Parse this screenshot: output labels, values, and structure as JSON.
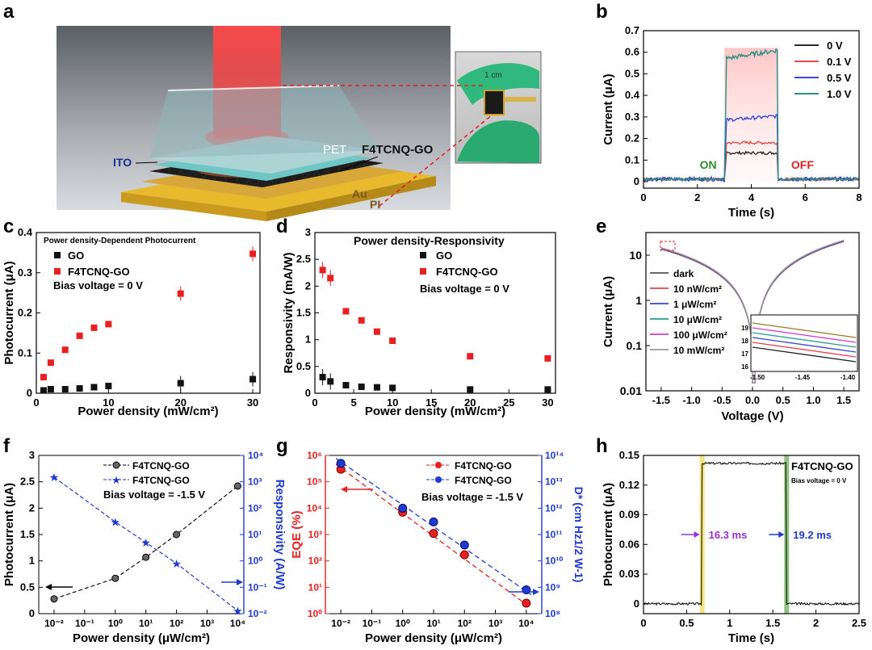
{
  "panel_letters": [
    "a",
    "b",
    "c",
    "d",
    "e",
    "f",
    "g",
    "h"
  ],
  "illustration": {
    "labels": {
      "pet": "PET",
      "active": "F4TCNQ-GO",
      "ito": "ITO",
      "au": "Au",
      "pi": "PI",
      "scale": "1 cm"
    },
    "colors": {
      "laser": "#e8343a",
      "gold": "#e7b730",
      "glove": "#2fb67a",
      "cyan": "#67c3c7"
    }
  },
  "chart_data": [
    {
      "panel": "b",
      "type": "line",
      "xlabel": "Time (s)",
      "ylabel": "Current (μA)",
      "xlim": [
        0,
        8
      ],
      "ylim": [
        -0.03,
        0.7
      ],
      "xticks": [
        0,
        2,
        4,
        6,
        8
      ],
      "yticks": [
        0.0,
        0.1,
        0.2,
        0.3,
        0.4,
        0.5,
        0.6,
        0.7
      ],
      "on_time": 3,
      "off_time": 5,
      "annotations": [
        {
          "text": "ON",
          "x": 2.4,
          "y": 0.06,
          "color": "#2e8b2e"
        },
        {
          "text": "OFF",
          "x": 5.9,
          "y": 0.06,
          "color": "#e02020"
        }
      ],
      "series": [
        {
          "name": "0 V",
          "color": "#2b2b2b",
          "base": 0.0,
          "plateau": 0.14
        },
        {
          "name": "0.1 V",
          "color": "#e84a4a",
          "base": 0.0,
          "plateau": 0.19
        },
        {
          "name": "0.5 V",
          "color": "#3b4bd8",
          "base": 0.0,
          "plateau": 0.3
        },
        {
          "name": "1.0 V",
          "color": "#2a8f86",
          "base": 0.0,
          "plateau": 0.6
        }
      ]
    },
    {
      "panel": "c",
      "type": "scatter",
      "title": "Power density-Dependent Photocurrent",
      "xlabel": "Power density (mW/cm²)",
      "ylabel": "Photocurrent (μA)",
      "xlim": [
        0,
        31
      ],
      "ylim": [
        0,
        0.4
      ],
      "xticks": [
        0,
        10,
        20,
        30
      ],
      "yticks": [
        0.0,
        0.1,
        0.2,
        0.3,
        0.4
      ],
      "note": "Bias voltage = 0 V",
      "series": [
        {
          "name": "GO",
          "color": "#111111",
          "x": [
            1,
            2,
            4,
            6,
            8,
            10,
            20,
            30
          ],
          "y": [
            0.007,
            0.01,
            0.01,
            0.012,
            0.015,
            0.018,
            0.025,
            0.035
          ]
        },
        {
          "name": "F4TCNQ-GO",
          "color": "#e8201f",
          "x": [
            1,
            2,
            4,
            6,
            8,
            10,
            20,
            30
          ],
          "y": [
            0.04,
            0.076,
            0.108,
            0.143,
            0.163,
            0.172,
            0.248,
            0.347
          ]
        }
      ]
    },
    {
      "panel": "d",
      "type": "scatter",
      "title": "Power density-Responsivity",
      "xlabel": "Power density (mW/cm²)",
      "ylabel": "Responsivity (mA/W)",
      "xlim": [
        0,
        31
      ],
      "ylim": [
        0,
        3.0
      ],
      "xticks": [
        0,
        5,
        10,
        15,
        20,
        25,
        30
      ],
      "yticks": [
        0.0,
        0.5,
        1.0,
        1.5,
        2.0,
        2.5,
        3.0
      ],
      "note": "Bias voltage = 0 V",
      "series": [
        {
          "name": "GO",
          "color": "#111111",
          "x": [
            1,
            2,
            4,
            6,
            8,
            10,
            20,
            30
          ],
          "y": [
            0.3,
            0.22,
            0.15,
            0.12,
            0.11,
            0.1,
            0.07,
            0.07
          ]
        },
        {
          "name": "F4TCNQ-GO",
          "color": "#e8201f",
          "x": [
            1,
            2,
            4,
            6,
            8,
            10,
            20,
            30
          ],
          "y": [
            2.3,
            2.15,
            1.53,
            1.36,
            1.15,
            0.98,
            0.69,
            0.65
          ]
        }
      ]
    },
    {
      "panel": "e",
      "type": "line",
      "xlabel": "Voltage (V)",
      "ylabel": "Current (μA)",
      "xlim": [
        -1.75,
        1.75
      ],
      "ylim_log10": [
        -2,
        1.5
      ],
      "xticks": [
        -1.5,
        -1.0,
        -0.5,
        0.0,
        0.5,
        1.0,
        1.5
      ],
      "yticks": [
        "0.01",
        "0.1",
        "1",
        "10"
      ],
      "series": [
        {
          "name": "dark",
          "color": "#555555"
        },
        {
          "name": "10 nW/cm²",
          "color": "#e8424a"
        },
        {
          "name": "1 μW/cm²",
          "color": "#3246d8"
        },
        {
          "name": "10 μW/cm²",
          "color": "#2a9a90"
        },
        {
          "name": "100 μW/cm²",
          "color": "#d13fd1"
        },
        {
          "name": "10 mW/cm²",
          "color": "#999999"
        }
      ],
      "inset": {
        "xticks": [
          "-1.50",
          "-1.45",
          "-1.40"
        ],
        "yticks": [
          "16",
          "17",
          "18",
          "19"
        ]
      }
    },
    {
      "panel": "f",
      "type": "line",
      "xlabel": "Power density (μW/cm²)",
      "ylabel": "Photocurrent (μA)",
      "y2label": "Responsivity (A/W)",
      "xlim_log10": [
        -2.5,
        4.2
      ],
      "ylim": [
        0,
        3.0
      ],
      "y2lim_log10": [
        -2,
        4
      ],
      "xticks": [
        "10⁻²",
        "10⁻¹",
        "10⁰",
        "10¹",
        "10²",
        "10³",
        "10⁴"
      ],
      "yticks": [
        0.0,
        0.5,
        1.0,
        1.5,
        2.0,
        2.5,
        3.0
      ],
      "y2ticks": [
        "10⁻²",
        "10⁻¹",
        "10⁰",
        "10¹",
        "10²",
        "10³",
        "10⁴"
      ],
      "note": "Bias voltage = -1.5 V",
      "series": [
        {
          "name": "F4TCNQ-GO",
          "color": "#111111",
          "axis": "left",
          "x": [
            0.01,
            1,
            10,
            100,
            10000
          ],
          "y": [
            0.28,
            0.67,
            1.07,
            1.5,
            2.42
          ]
        },
        {
          "name": "F4TCNQ-GO",
          "color": "#1f3ad1",
          "axis": "right",
          "x": [
            0.01,
            1,
            10,
            100,
            10000
          ],
          "y": [
            1500,
            30,
            5,
            0.8,
            0.013
          ]
        }
      ]
    },
    {
      "panel": "g",
      "type": "line",
      "xlabel": "Power density (μW/cm²)",
      "ylabel": "EQE (%)",
      "y2label": "D* (cm Hz1/2 W-1)",
      "xlim_log10": [
        -2.5,
        4.5
      ],
      "ylim_log10": [
        0,
        6
      ],
      "y2lim_log10": [
        8,
        14
      ],
      "xticks": [
        "10⁻²",
        "10⁻¹",
        "10⁰",
        "10¹",
        "10²",
        "10³",
        "10⁴"
      ],
      "yticks": [
        "10⁰",
        "10¹",
        "10²",
        "10³",
        "10⁴",
        "10⁵",
        "10⁶"
      ],
      "y2ticks": [
        "10⁸",
        "10⁹",
        "10¹⁰",
        "10¹¹",
        "10¹²",
        "10¹³",
        "10¹⁴"
      ],
      "note": "Bias voltage = -1.5 V",
      "series": [
        {
          "name": "F4TCNQ-GO",
          "color": "#e8201f",
          "axis": "left",
          "x": [
            0.01,
            1,
            10,
            100,
            10000
          ],
          "y": [
            300000,
            7000,
            1100,
            170,
            2.5
          ]
        },
        {
          "name": "F4TCNQ-GO",
          "color": "#1f3ad1",
          "axis": "right",
          "x": [
            0.01,
            1,
            10,
            100,
            10000
          ],
          "y": [
            50000000000000,
            1000000000000,
            300000000000,
            40000000000,
            800000000
          ]
        }
      ]
    },
    {
      "panel": "h",
      "type": "line",
      "xlabel": "Time (s)",
      "ylabel": "Photocurrent (μA)",
      "xlim": [
        0,
        2.5
      ],
      "ylim": [
        -0.01,
        0.15
      ],
      "xticks": [
        0.0,
        0.5,
        1.0,
        1.5,
        2.0,
        2.5
      ],
      "yticks": [
        0.0,
        0.03,
        0.06,
        0.09,
        0.12,
        0.15
      ],
      "title": "F4TCNQ-GO",
      "note": "Bias voltage = 0 V",
      "on_time": 0.68,
      "off_time": 1.66,
      "off_level": 0.0,
      "on_level": 0.142,
      "rise": "16.3 ms",
      "fall": "19.2 ms"
    }
  ]
}
